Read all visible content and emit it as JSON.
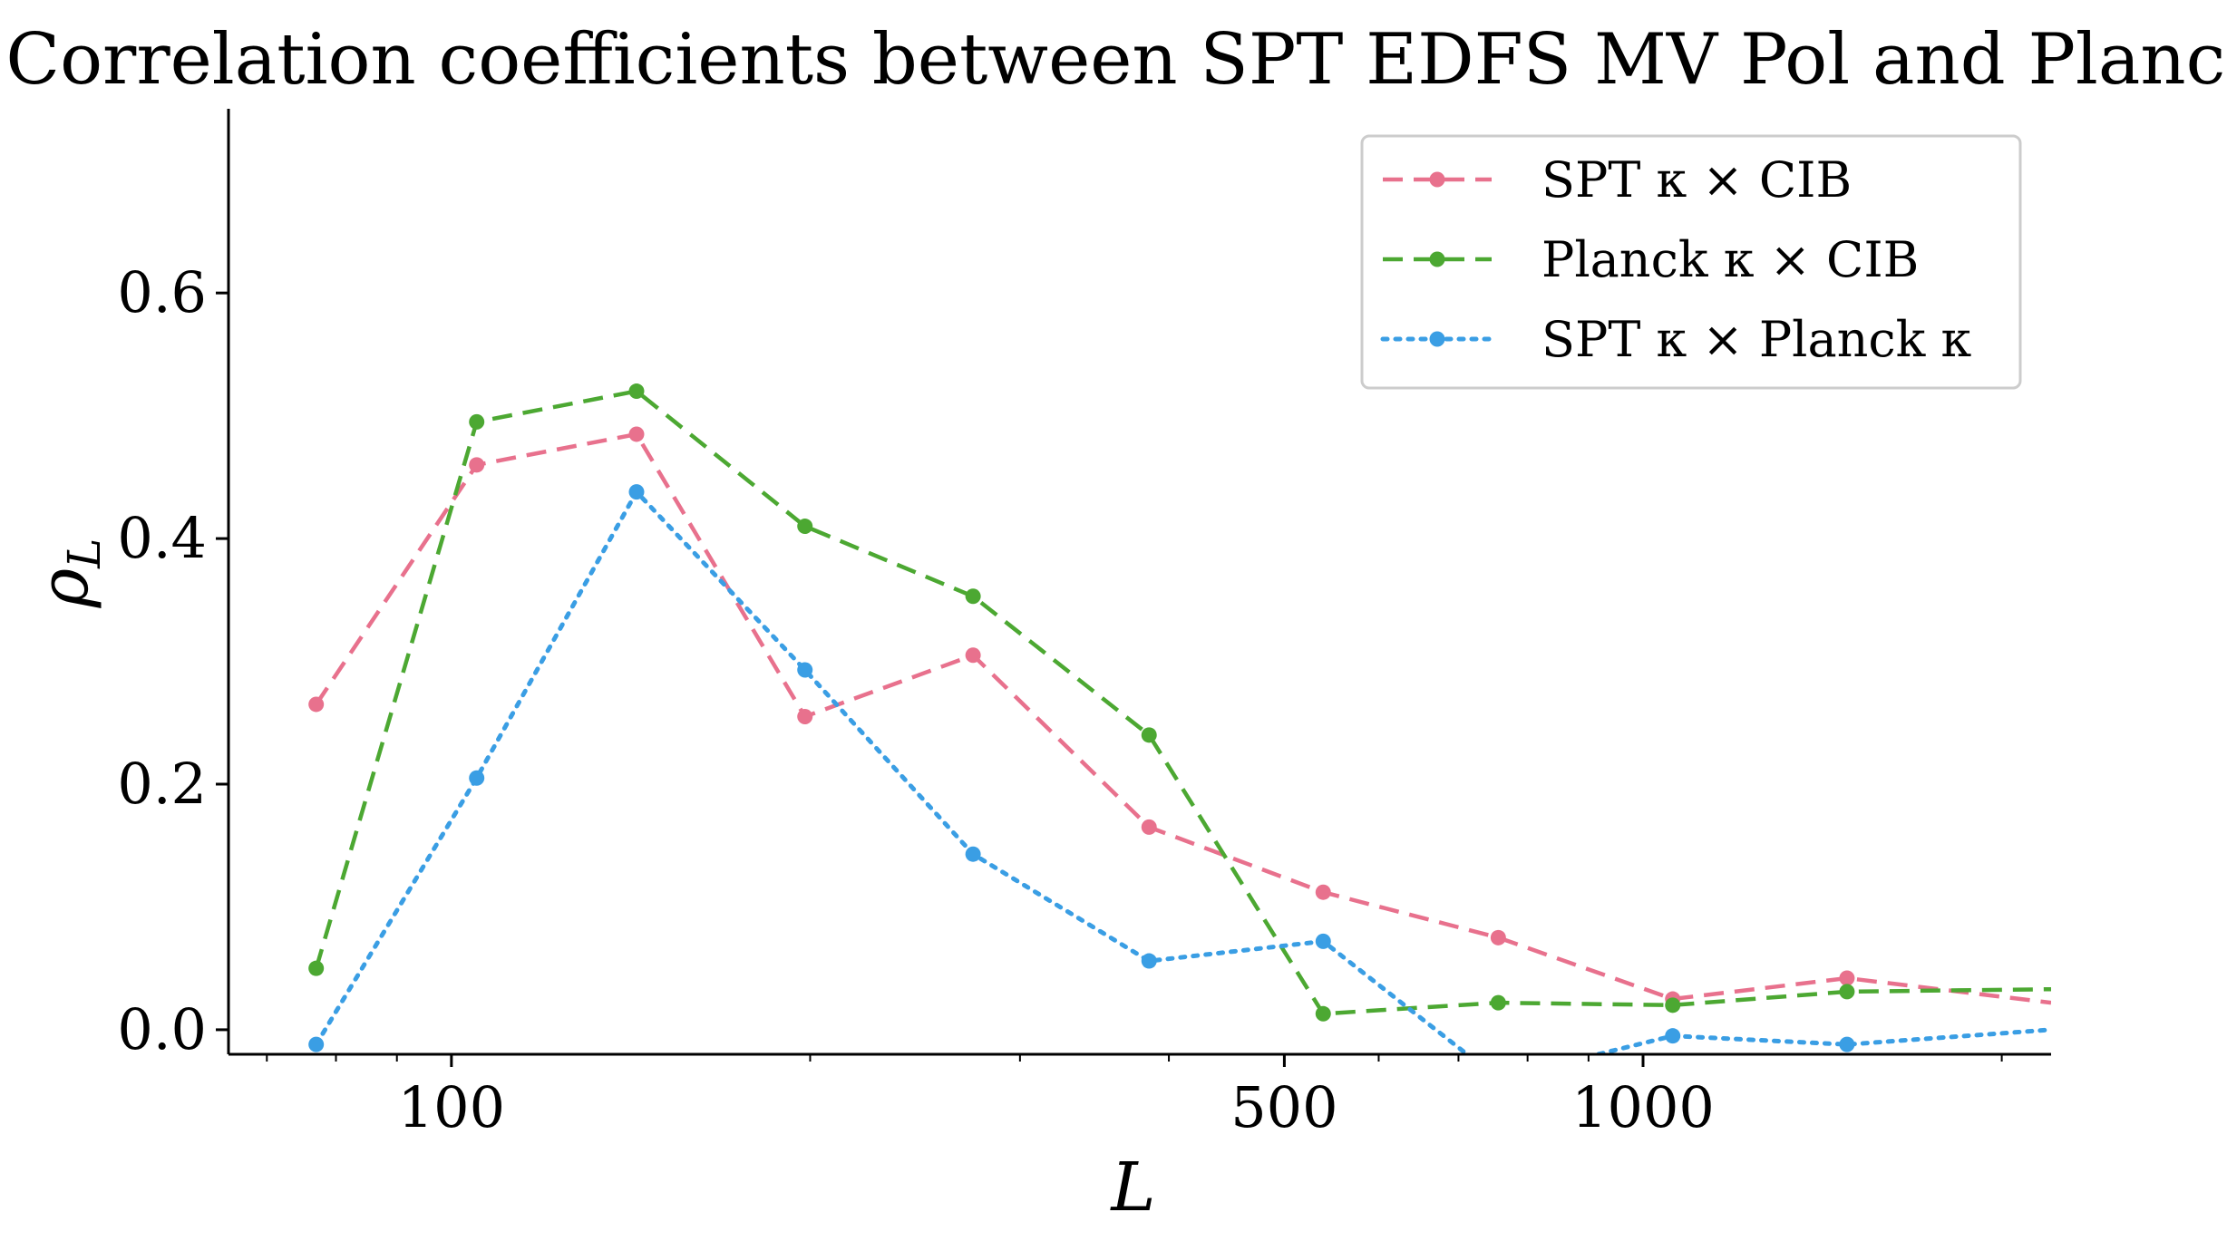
{
  "chart_data": {
    "type": "line",
    "title": "Correlation coefficients between SPT EDFS MV Pol and Planck",
    "xlabel": "L",
    "ylabel_base": "ρ",
    "ylabel_sub": "L",
    "xscale": "log",
    "xlim": [
      65,
      2200
    ],
    "ylim": [
      -0.02,
      0.75
    ],
    "x_ticks": [
      100,
      500,
      1000
    ],
    "x_tick_labels": [
      "100",
      "500",
      "1000"
    ],
    "y_ticks": [
      0.0,
      0.2,
      0.4,
      0.6
    ],
    "y_tick_labels": [
      "0.0",
      "0.2",
      "0.4",
      "0.6"
    ],
    "legend_position": "top-right",
    "series": [
      {
        "name": "SPT κ × CIB",
        "color": "#e8718d",
        "style": "dashed",
        "x": [
          77,
          105,
          143,
          198,
          274,
          385,
          539,
          756,
          1059,
          1483,
          2200
        ],
        "values": [
          0.265,
          0.46,
          0.485,
          0.255,
          0.305,
          0.165,
          0.112,
          0.075,
          0.025,
          0.042,
          0.022
        ]
      },
      {
        "name": "Planck κ × CIB",
        "color": "#4ca832",
        "style": "dashed",
        "x": [
          77,
          105,
          143,
          198,
          274,
          385,
          539,
          756,
          1059,
          1483,
          2200
        ],
        "values": [
          0.05,
          0.495,
          0.52,
          0.41,
          0.353,
          0.24,
          0.013,
          0.022,
          0.02,
          0.031,
          0.033
        ]
      },
      {
        "name": "SPT κ × Planck κ",
        "color": "#3a9ee4",
        "style": "dotted",
        "x": [
          77,
          105,
          143,
          198,
          274,
          385,
          539,
          756,
          1059,
          1483,
          2200
        ],
        "values": [
          -0.012,
          0.205,
          0.438,
          0.293,
          0.143,
          0.056,
          0.072,
          -0.04,
          -0.005,
          -0.012,
          0.0
        ]
      }
    ]
  }
}
